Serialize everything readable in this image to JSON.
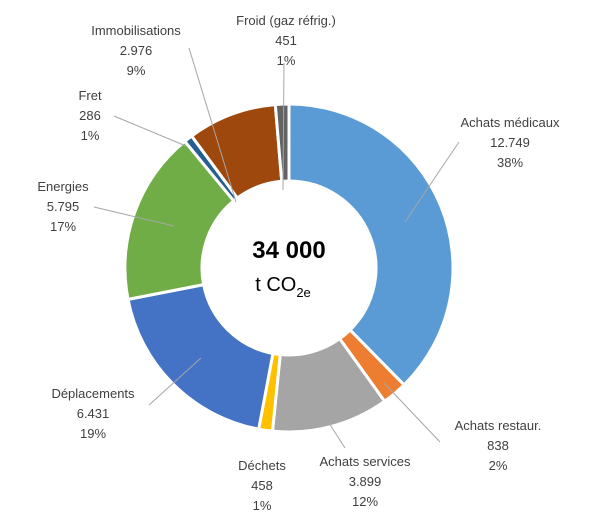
{
  "chart_data": {
    "type": "pie",
    "variant": "donut",
    "total_label": "34 000",
    "unit_main": "t CO",
    "unit_subscript": "2e",
    "slices": [
      {
        "name": "Achats médicaux",
        "value_label": "12.749",
        "percent_label": "38%",
        "value": 12749,
        "color": "#5B9BD5"
      },
      {
        "name": "Achats restaur.",
        "value_label": "838",
        "percent_label": "2%",
        "value": 838,
        "color": "#ED7D31"
      },
      {
        "name": "Achats services",
        "value_label": "3.899",
        "percent_label": "12%",
        "value": 3899,
        "color": "#A5A5A5"
      },
      {
        "name": "Déchets",
        "value_label": "458",
        "percent_label": "1%",
        "value": 458,
        "color": "#FFC000"
      },
      {
        "name": "Déplacements",
        "value_label": "6.431",
        "percent_label": "19%",
        "value": 6431,
        "color": "#4472C4"
      },
      {
        "name": "Energies",
        "value_label": "5.795",
        "percent_label": "17%",
        "value": 5795,
        "color": "#70AD47"
      },
      {
        "name": "Fret",
        "value_label": "286",
        "percent_label": "1%",
        "value": 286,
        "color": "#255E91"
      },
      {
        "name": "Immobilisations",
        "value_label": "2.976",
        "percent_label": "9%",
        "value": 2976,
        "color": "#9E480E"
      },
      {
        "name": "Froid (gaz réfrig.)",
        "value_label": "451",
        "percent_label": "1%",
        "value": 451,
        "color": "#636363"
      }
    ]
  }
}
